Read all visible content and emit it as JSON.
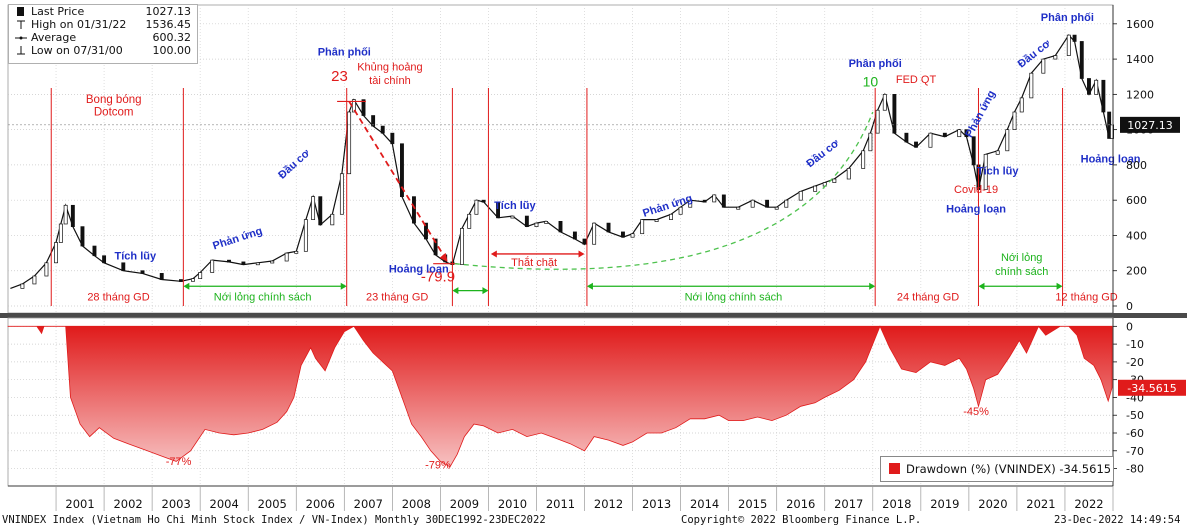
{
  "legend": {
    "rows": [
      {
        "label": "Last Price",
        "value": "1027.13"
      },
      {
        "label": "High on 01/31/22",
        "value": "1536.45"
      },
      {
        "label": "Average",
        "value": "600.32"
      },
      {
        "label": "Low on 07/31/00",
        "value": "100.00"
      }
    ]
  },
  "drawdown_legend": "Drawdown (%) (VNINDEX) -34.5615",
  "footer": {
    "left": "VNINDEX Index (Vietnam Ho Chi Minh Stock Index / VN-Index)  Monthly 30DEC1992-23DEC2022",
    "center": "Copyright© 2022 Bloomberg Finance L.P.",
    "right": "23-Dec-2022 14:49:54"
  },
  "colors": {
    "price": "#111111",
    "drawdown": "#e01b1b",
    "phase_line": "#e01b1b",
    "phase_text": "#1f2fc7",
    "easing": "#1db31d"
  },
  "chart_data": [
    {
      "type": "line",
      "title": "VNINDEX Index (Vietnam Ho Chi Minh Stock Index / VN-Index) Monthly",
      "ylim": [
        0,
        1650
      ],
      "yticks": [
        0,
        200,
        400,
        600,
        800,
        1000,
        1200,
        1400,
        1600
      ],
      "xlim": [
        2000.0,
        2023.0
      ],
      "x_tick_labels": [
        "2001",
        "2002",
        "2003",
        "2004",
        "2005",
        "2006",
        "2007",
        "2008",
        "2009",
        "2010",
        "2011",
        "2012",
        "2013",
        "2014",
        "2015",
        "2016",
        "2017",
        "2018",
        "2019",
        "2020",
        "2021",
        "2022"
      ],
      "last_value_label": "1027.13",
      "series": [
        {
          "name": "Last Price",
          "points": [
            [
              2000.05,
              100
            ],
            [
              2000.3,
              125
            ],
            [
              2000.55,
              170
            ],
            [
              2000.8,
              245
            ],
            [
              2001.0,
              360
            ],
            [
              2001.1,
              465
            ],
            [
              2001.2,
              571
            ],
            [
              2001.35,
              450
            ],
            [
              2001.55,
              340
            ],
            [
              2001.8,
              285
            ],
            [
              2002.0,
              245
            ],
            [
              2002.4,
              200
            ],
            [
              2002.8,
              185
            ],
            [
              2003.2,
              150
            ],
            [
              2003.6,
              140
            ],
            [
              2003.85,
              155
            ],
            [
              2004.0,
              190
            ],
            [
              2004.25,
              260
            ],
            [
              2004.6,
              250
            ],
            [
              2004.9,
              235
            ],
            [
              2005.2,
              245
            ],
            [
              2005.5,
              255
            ],
            [
              2005.8,
              300
            ],
            [
              2006.0,
              310
            ],
            [
              2006.2,
              490
            ],
            [
              2006.35,
              620
            ],
            [
              2006.5,
              460
            ],
            [
              2006.75,
              520
            ],
            [
              2006.95,
              750
            ],
            [
              2007.1,
              1100
            ],
            [
              2007.2,
              1170
            ],
            [
              2007.4,
              1080
            ],
            [
              2007.6,
              1020
            ],
            [
              2007.8,
              980
            ],
            [
              2008.0,
              920
            ],
            [
              2008.2,
              620
            ],
            [
              2008.45,
              470
            ],
            [
              2008.7,
              380
            ],
            [
              2008.9,
              290
            ],
            [
              2009.1,
              250
            ],
            [
              2009.25,
              235
            ],
            [
              2009.45,
              440
            ],
            [
              2009.6,
              520
            ],
            [
              2009.75,
              600
            ],
            [
              2009.9,
              590
            ],
            [
              2010.2,
              500
            ],
            [
              2010.5,
              510
            ],
            [
              2010.8,
              450
            ],
            [
              2011.0,
              470
            ],
            [
              2011.2,
              480
            ],
            [
              2011.5,
              420
            ],
            [
              2011.8,
              380
            ],
            [
              2012.0,
              350
            ],
            [
              2012.2,
              470
            ],
            [
              2012.5,
              420
            ],
            [
              2012.8,
              390
            ],
            [
              2013.0,
              410
            ],
            [
              2013.2,
              490
            ],
            [
              2013.5,
              490
            ],
            [
              2013.8,
              520
            ],
            [
              2014.0,
              560
            ],
            [
              2014.2,
              600
            ],
            [
              2014.5,
              590
            ],
            [
              2014.7,
              630
            ],
            [
              2014.9,
              560
            ],
            [
              2015.2,
              560
            ],
            [
              2015.5,
              600
            ],
            [
              2015.8,
              560
            ],
            [
              2016.0,
              560
            ],
            [
              2016.2,
              600
            ],
            [
              2016.5,
              650
            ],
            [
              2016.8,
              680
            ],
            [
              2017.0,
              700
            ],
            [
              2017.2,
              720
            ],
            [
              2017.5,
              780
            ],
            [
              2017.8,
              880
            ],
            [
              2017.95,
              980
            ],
            [
              2018.1,
              1110
            ],
            [
              2018.25,
              1200
            ],
            [
              2018.45,
              980
            ],
            [
              2018.7,
              930
            ],
            [
              2018.9,
              900
            ],
            [
              2019.2,
              980
            ],
            [
              2019.5,
              960
            ],
            [
              2019.8,
              1000
            ],
            [
              2019.95,
              960
            ],
            [
              2020.1,
              800
            ],
            [
              2020.2,
              660
            ],
            [
              2020.35,
              860
            ],
            [
              2020.6,
              880
            ],
            [
              2020.8,
              1000
            ],
            [
              2020.95,
              1100
            ],
            [
              2021.1,
              1180
            ],
            [
              2021.3,
              1320
            ],
            [
              2021.55,
              1400
            ],
            [
              2021.8,
              1420
            ],
            [
              2022.08,
              1536
            ],
            [
              2022.2,
              1500
            ],
            [
              2022.35,
              1290
            ],
            [
              2022.5,
              1200
            ],
            [
              2022.65,
              1280
            ],
            [
              2022.8,
              1100
            ],
            [
              2022.92,
              950
            ],
            [
              2022.98,
              1027
            ]
          ]
        }
      ],
      "annotations": [
        {
          "text": "Bong bóng",
          "color": "red"
        },
        {
          "text": "Dotcom",
          "color": "red"
        },
        {
          "text": "Tích lũy",
          "color": "blue"
        },
        {
          "text": "Phản ứng",
          "color": "blue"
        },
        {
          "text": "Đầu cơ",
          "color": "blue"
        },
        {
          "text": "Phân phối",
          "color": "blue"
        },
        {
          "text": "Khủng hoảng",
          "color": "red"
        },
        {
          "text": "tài chính",
          "color": "red"
        },
        {
          "text": "23",
          "color": "red"
        },
        {
          "text": "-79.9",
          "color": "red"
        },
        {
          "text": "Hoảng loạn",
          "color": "blue"
        },
        {
          "text": "Tích lũy",
          "color": "blue"
        },
        {
          "text": "Thắt chặt",
          "color": "red"
        },
        {
          "text": "Phản ứng",
          "color": "blue"
        },
        {
          "text": "Đầu cơ",
          "color": "blue"
        },
        {
          "text": "Phân phối",
          "color": "blue"
        },
        {
          "text": "FED QT",
          "color": "red"
        },
        {
          "text": "10",
          "color": "green"
        },
        {
          "text": "Covid-19",
          "color": "red"
        },
        {
          "text": "Hoảng loạn",
          "color": "blue"
        },
        {
          "text": "Tích lũy",
          "color": "blue"
        },
        {
          "text": "Phản ứng",
          "color": "blue"
        },
        {
          "text": "Đầu cơ",
          "color": "blue"
        },
        {
          "text": "Phân phối",
          "color": "blue"
        },
        {
          "text": "Hoảng loạn",
          "color": "blue"
        },
        {
          "text": "Nới lỏng",
          "color": "green"
        },
        {
          "text": "chính sách",
          "color": "green"
        }
      ],
      "phase_labels": [
        "28 tháng GD",
        "Nới lỏng chính sách",
        "23 tháng GD",
        "Nới lỏng chính sách",
        "24 tháng GD",
        "12 tháng GD"
      ],
      "phase_boundaries": [
        2000.9,
        2003.65,
        2007.05,
        2009.25,
        2010.0,
        2012.05,
        2018.05,
        2020.2,
        2021.95
      ]
    },
    {
      "type": "area",
      "title": "Drawdown (%) (VNINDEX)",
      "ylim": [
        -87,
        3
      ],
      "yticks": [
        0,
        -10,
        -20,
        -30,
        -40,
        -50,
        -60,
        -70,
        -80
      ],
      "last_value_label": "-34.5615",
      "series": [
        {
          "name": "Drawdown (%) (VNINDEX)",
          "points": [
            [
              2000.0,
              0
            ],
            [
              2000.6,
              0
            ],
            [
              2000.7,
              -4
            ],
            [
              2000.75,
              0
            ],
            [
              2001.2,
              0
            ],
            [
              2001.3,
              -40
            ],
            [
              2001.5,
              -55
            ],
            [
              2001.7,
              -62
            ],
            [
              2001.9,
              -57
            ],
            [
              2002.2,
              -63
            ],
            [
              2002.5,
              -66
            ],
            [
              2002.9,
              -70
            ],
            [
              2003.2,
              -73
            ],
            [
              2003.5,
              -76
            ],
            [
              2003.8,
              -70
            ],
            [
              2004.1,
              -58
            ],
            [
              2004.4,
              -60
            ],
            [
              2004.7,
              -61
            ],
            [
              2005.0,
              -60
            ],
            [
              2005.3,
              -58
            ],
            [
              2005.6,
              -54
            ],
            [
              2005.8,
              -48
            ],
            [
              2005.95,
              -40
            ],
            [
              2006.1,
              -22
            ],
            [
              2006.3,
              -12
            ],
            [
              2006.4,
              -18
            ],
            [
              2006.6,
              -25
            ],
            [
              2006.8,
              -12
            ],
            [
              2007.0,
              -3
            ],
            [
              2007.2,
              0
            ],
            [
              2007.4,
              -8
            ],
            [
              2007.6,
              -15
            ],
            [
              2007.8,
              -20
            ],
            [
              2008.0,
              -25
            ],
            [
              2008.2,
              -40
            ],
            [
              2008.4,
              -55
            ],
            [
              2008.6,
              -62
            ],
            [
              2008.8,
              -70
            ],
            [
              2009.0,
              -76
            ],
            [
              2009.2,
              -79
            ],
            [
              2009.35,
              -72
            ],
            [
              2009.5,
              -62
            ],
            [
              2009.7,
              -55
            ],
            [
              2009.9,
              -56
            ],
            [
              2010.2,
              -60
            ],
            [
              2010.5,
              -58
            ],
            [
              2010.8,
              -62
            ],
            [
              2011.1,
              -60
            ],
            [
              2011.4,
              -63
            ],
            [
              2011.7,
              -66
            ],
            [
              2012.0,
              -70
            ],
            [
              2012.2,
              -62
            ],
            [
              2012.5,
              -64
            ],
            [
              2012.8,
              -67
            ],
            [
              2013.0,
              -65
            ],
            [
              2013.3,
              -60
            ],
            [
              2013.6,
              -60
            ],
            [
              2013.9,
              -57
            ],
            [
              2014.2,
              -52
            ],
            [
              2014.5,
              -52
            ],
            [
              2014.8,
              -50
            ],
            [
              2015.0,
              -53
            ],
            [
              2015.3,
              -53
            ],
            [
              2015.6,
              -51
            ],
            [
              2015.9,
              -53
            ],
            [
              2016.2,
              -50
            ],
            [
              2016.5,
              -45
            ],
            [
              2016.8,
              -43
            ],
            [
              2017.0,
              -40
            ],
            [
              2017.3,
              -36
            ],
            [
              2017.6,
              -30
            ],
            [
              2017.85,
              -20
            ],
            [
              2018.0,
              -10
            ],
            [
              2018.15,
              0
            ],
            [
              2018.35,
              -12
            ],
            [
              2018.6,
              -24
            ],
            [
              2018.9,
              -26
            ],
            [
              2019.2,
              -20
            ],
            [
              2019.5,
              -22
            ],
            [
              2019.8,
              -18
            ],
            [
              2019.95,
              -24
            ],
            [
              2020.1,
              -35
            ],
            [
              2020.2,
              -45
            ],
            [
              2020.35,
              -30
            ],
            [
              2020.6,
              -27
            ],
            [
              2020.85,
              -17
            ],
            [
              2021.05,
              -8
            ],
            [
              2021.2,
              -15
            ],
            [
              2021.45,
              0
            ],
            [
              2021.6,
              -5
            ],
            [
              2021.9,
              0
            ],
            [
              2022.08,
              0
            ],
            [
              2022.25,
              -5
            ],
            [
              2022.4,
              -18
            ],
            [
              2022.6,
              -22
            ],
            [
              2022.75,
              -30
            ],
            [
              2022.9,
              -42
            ],
            [
              2022.98,
              -34.56
            ]
          ]
        }
      ],
      "annotations": [
        "-77%",
        "-79%",
        "-45%"
      ]
    }
  ]
}
